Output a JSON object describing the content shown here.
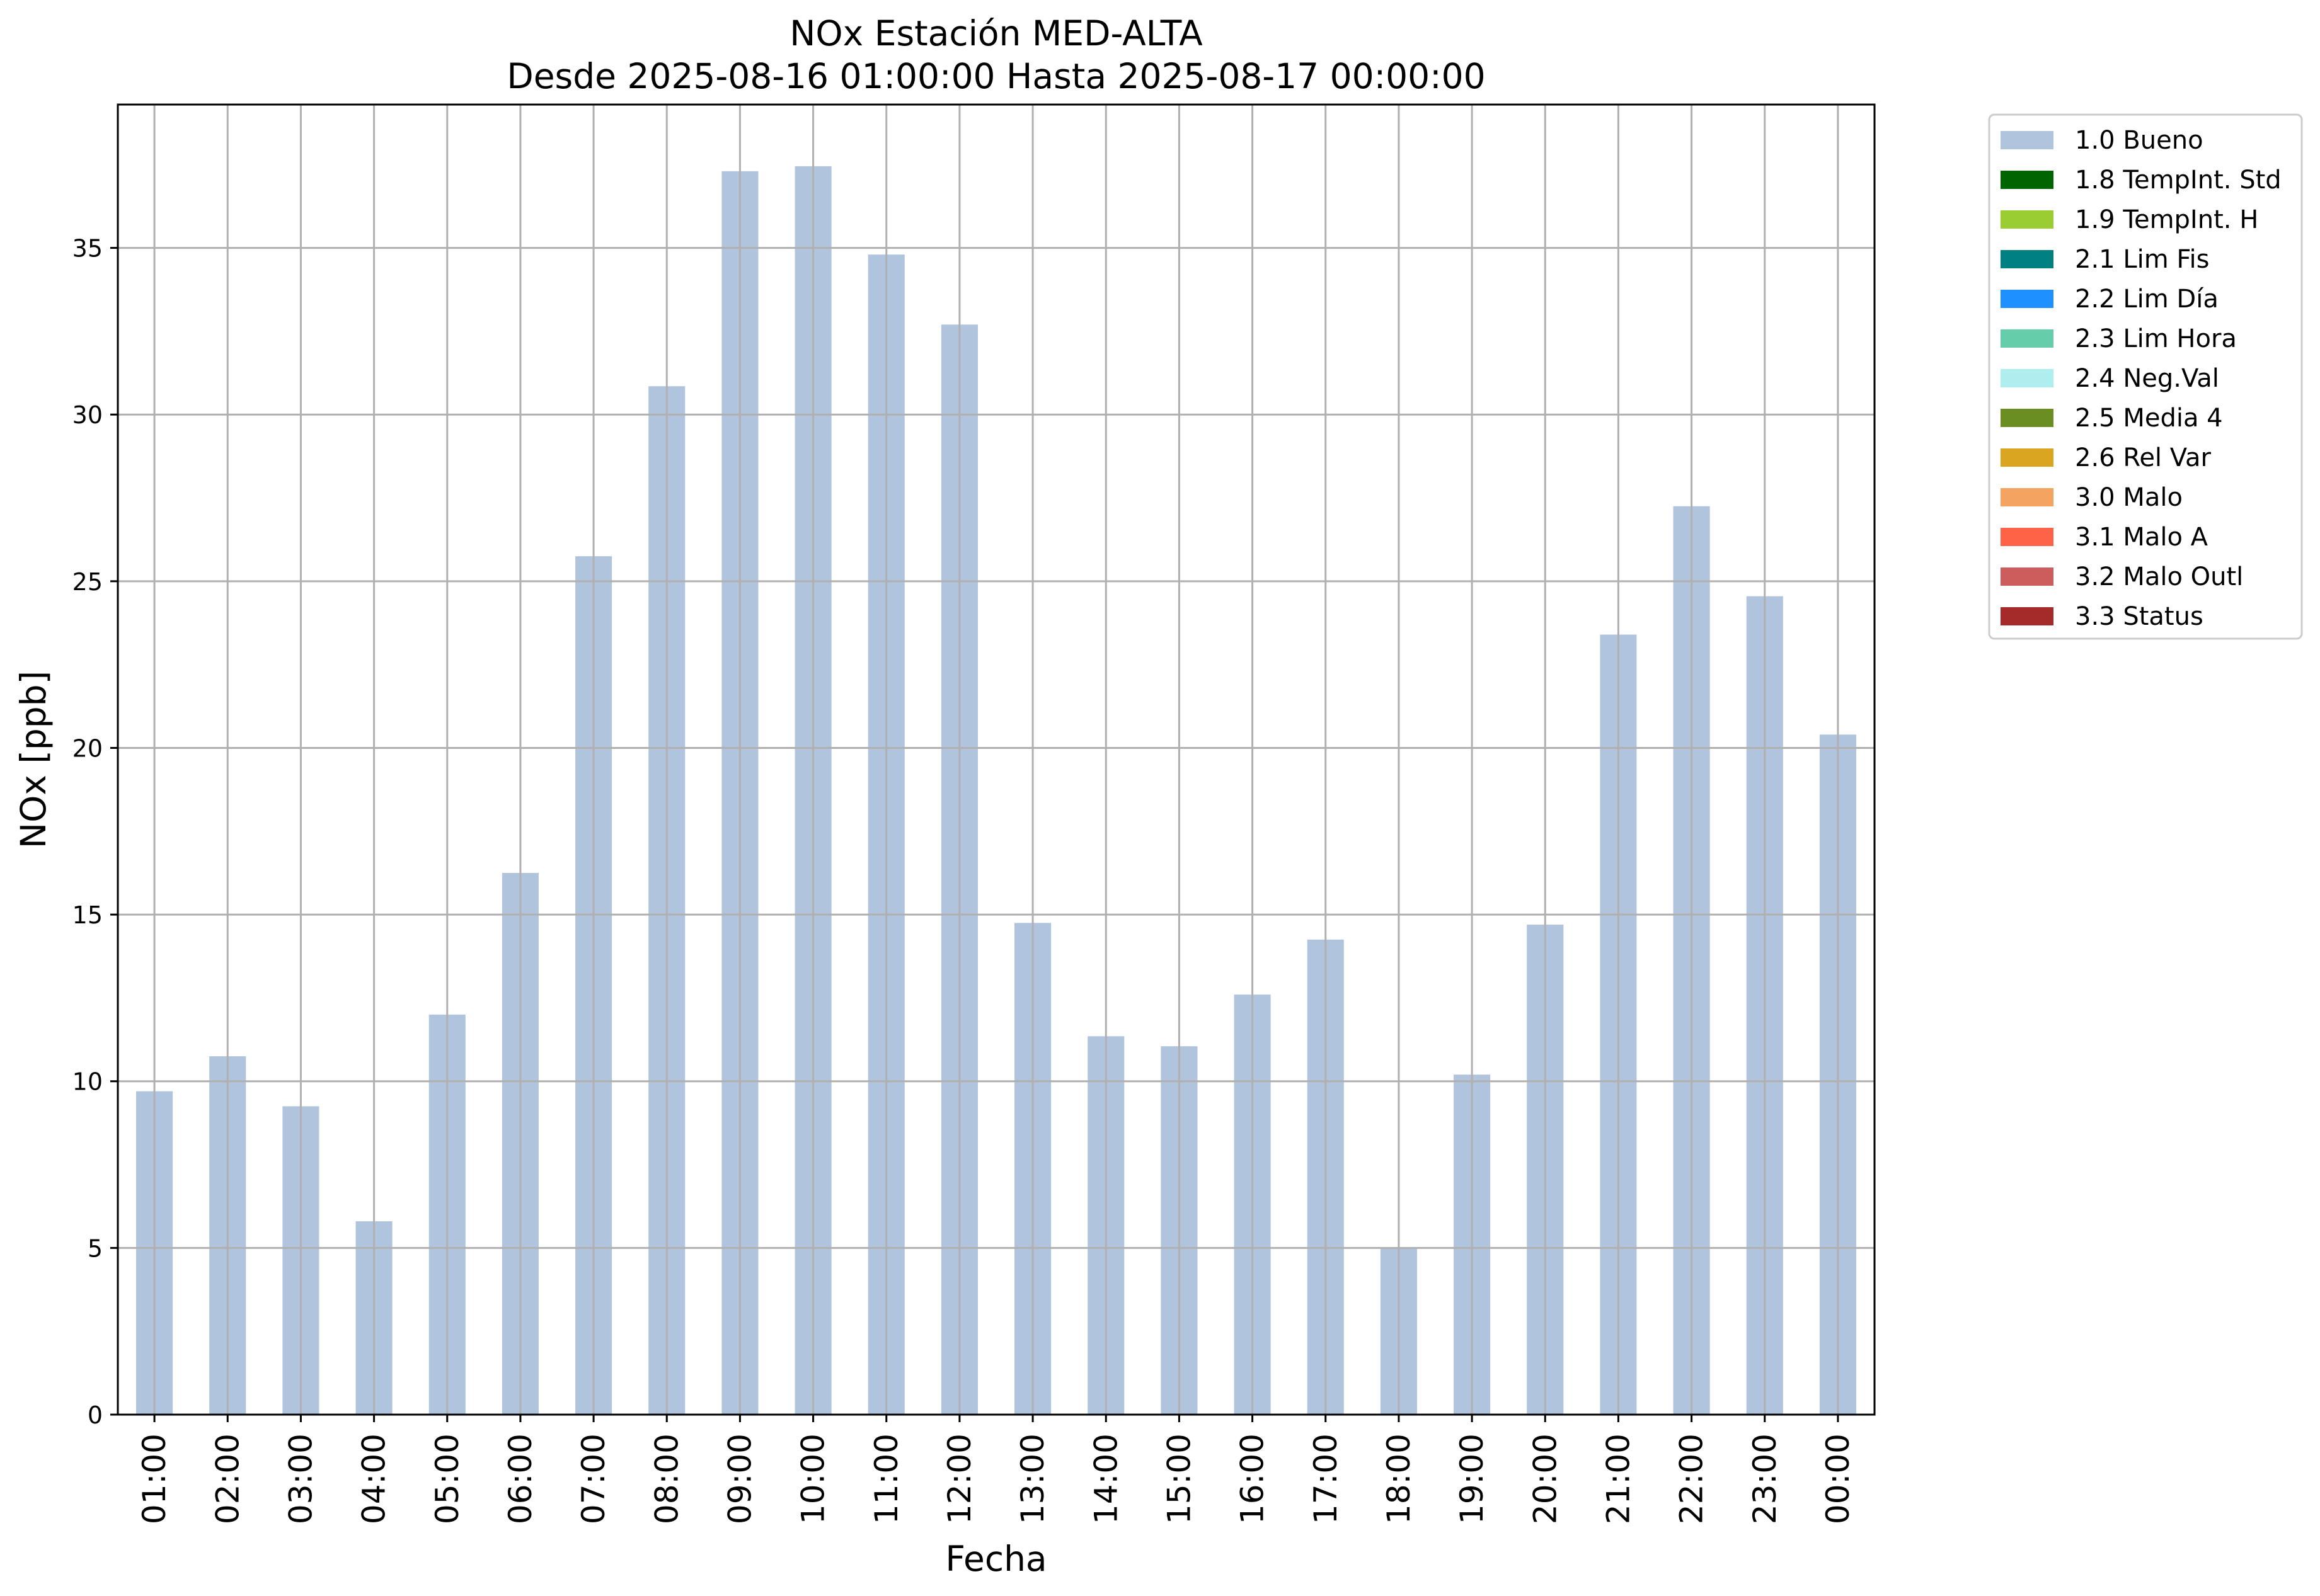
{
  "chart_data": {
    "type": "bar",
    "title": "NOx Estación MED-ALTA",
    "subtitle": "Desde 2025-08-16 01:00:00 Hasta 2025-08-17 00:00:00",
    "xlabel": "Fecha",
    "ylabel": "NOx [ppb]",
    "ylim": [
      0,
      39.3
    ],
    "yticks": [
      0,
      5,
      10,
      15,
      20,
      25,
      30,
      35
    ],
    "grid": true,
    "legend_position": "outside-top-right",
    "categories": [
      "01:00",
      "02:00",
      "03:00",
      "04:00",
      "05:00",
      "06:00",
      "07:00",
      "08:00",
      "09:00",
      "10:00",
      "11:00",
      "12:00",
      "13:00",
      "14:00",
      "15:00",
      "16:00",
      "17:00",
      "18:00",
      "19:00",
      "20:00",
      "21:00",
      "22:00",
      "23:00",
      "00:00"
    ],
    "series": [
      {
        "name": "1.0 Bueno",
        "color": "#b0c4de",
        "values": [
          9.7,
          10.75,
          9.25,
          5.8,
          12.0,
          16.25,
          25.75,
          30.85,
          37.3,
          37.45,
          34.8,
          32.7,
          14.75,
          11.35,
          11.05,
          12.6,
          14.25,
          5.0,
          10.2,
          14.7,
          23.4,
          27.25,
          24.55,
          20.4
        ]
      }
    ],
    "legend": [
      {
        "label": "1.0 Bueno",
        "color": "#b0c4de"
      },
      {
        "label": "1.8 TempInt. Std",
        "color": "#006400"
      },
      {
        "label": "1.9 TempInt. H",
        "color": "#9acd32"
      },
      {
        "label": "2.1 Lim Fis",
        "color": "#008080"
      },
      {
        "label": "2.2 Lim Día",
        "color": "#1e90ff"
      },
      {
        "label": "2.3 Lim Hora",
        "color": "#66cdaa"
      },
      {
        "label": "2.4 Neg.Val",
        "color": "#afeeee"
      },
      {
        "label": "2.5 Media 4",
        "color": "#6b8e23"
      },
      {
        "label": "2.6 Rel Var",
        "color": "#daa520"
      },
      {
        "label": "3.0 Malo",
        "color": "#f4a460"
      },
      {
        "label": "3.1 Malo A",
        "color": "#ff6347"
      },
      {
        "label": "3.2 Malo Outl",
        "color": "#cd5c5c"
      },
      {
        "label": "3.3 Status",
        "color": "#a52a2a"
      }
    ]
  }
}
